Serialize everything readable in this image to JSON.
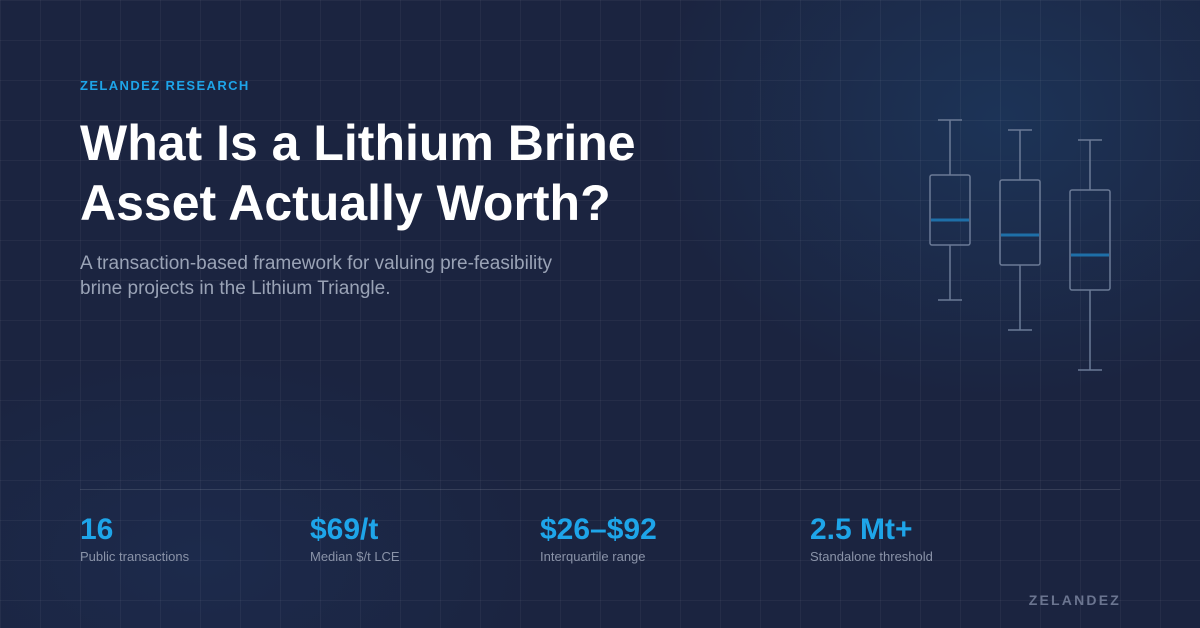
{
  "eyebrow": "ZELANDEZ RESEARCH",
  "title": "What Is a Lithium Brine Asset Actually Worth?",
  "subtitle": "A transaction-based framework for valuing pre-feasibility brine projects in the Lithium Triangle.",
  "stats": [
    {
      "value": "16",
      "label": "Public transactions"
    },
    {
      "value": "$69/t",
      "label": "Median $/t LCE"
    },
    {
      "value": "$26–$92",
      "label": "Interquartile range"
    },
    {
      "value": "2.5 Mt+",
      "label": "Standalone threshold"
    }
  ],
  "brand": "ZELANDEZ"
}
